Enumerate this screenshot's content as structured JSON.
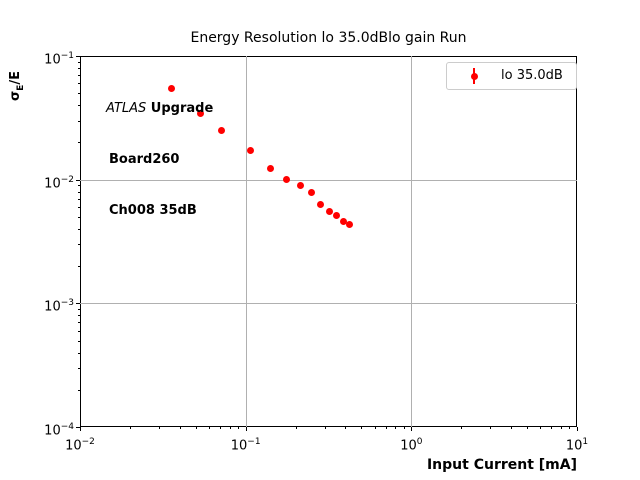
{
  "figure": {
    "title": "Energy Resolution lo 35.0dBlo gain Run",
    "background": "#ffffff"
  },
  "axes": {
    "xlabel": "Input Current [mA]",
    "ylabel_sigma": "σ",
    "ylabel_sub": "E",
    "ylabel_rest": "/E"
  },
  "annotation": {
    "line1_italic": "ATLAS",
    "line1_bold": " Upgrade",
    "line2": "Board260",
    "line3": "Ch008 35dB"
  },
  "legend": {
    "entries": [
      {
        "label": "lo 35.0dB",
        "color": "#ff0000",
        "marker": "errorbar-point"
      }
    ]
  },
  "chart_data": {
    "type": "scatter",
    "title": "Energy Resolution lo 35.0dBlo gain Run",
    "xlabel": "Input Current [mA]",
    "ylabel": "σE/E",
    "xscale": "log",
    "yscale": "log",
    "xlim": [
      0.01,
      10
    ],
    "ylim": [
      0.0001,
      0.1
    ],
    "grid": true,
    "legend_position": "upper right",
    "x_tick_exponents": [
      -2,
      -1,
      0,
      1
    ],
    "y_tick_exponents": [
      -1,
      -2,
      -3,
      -4
    ],
    "series": [
      {
        "name": "lo 35.0dB",
        "color": "#ff0000",
        "marker": "circle",
        "x": [
          0.0355,
          0.0533,
          0.071,
          0.1065,
          0.142,
          0.1775,
          0.213,
          0.2485,
          0.284,
          0.3195,
          0.355,
          0.3905,
          0.426
        ],
        "y": [
          0.0546,
          0.034,
          0.0249,
          0.0173,
          0.0122,
          0.01,
          0.009,
          0.0079,
          0.0063,
          0.0055,
          0.0051,
          0.0046,
          0.0043
        ]
      }
    ],
    "colors": {
      "grid": "#b0b0b0",
      "spine": "#000000",
      "legend_border": "#cccccc"
    }
  }
}
